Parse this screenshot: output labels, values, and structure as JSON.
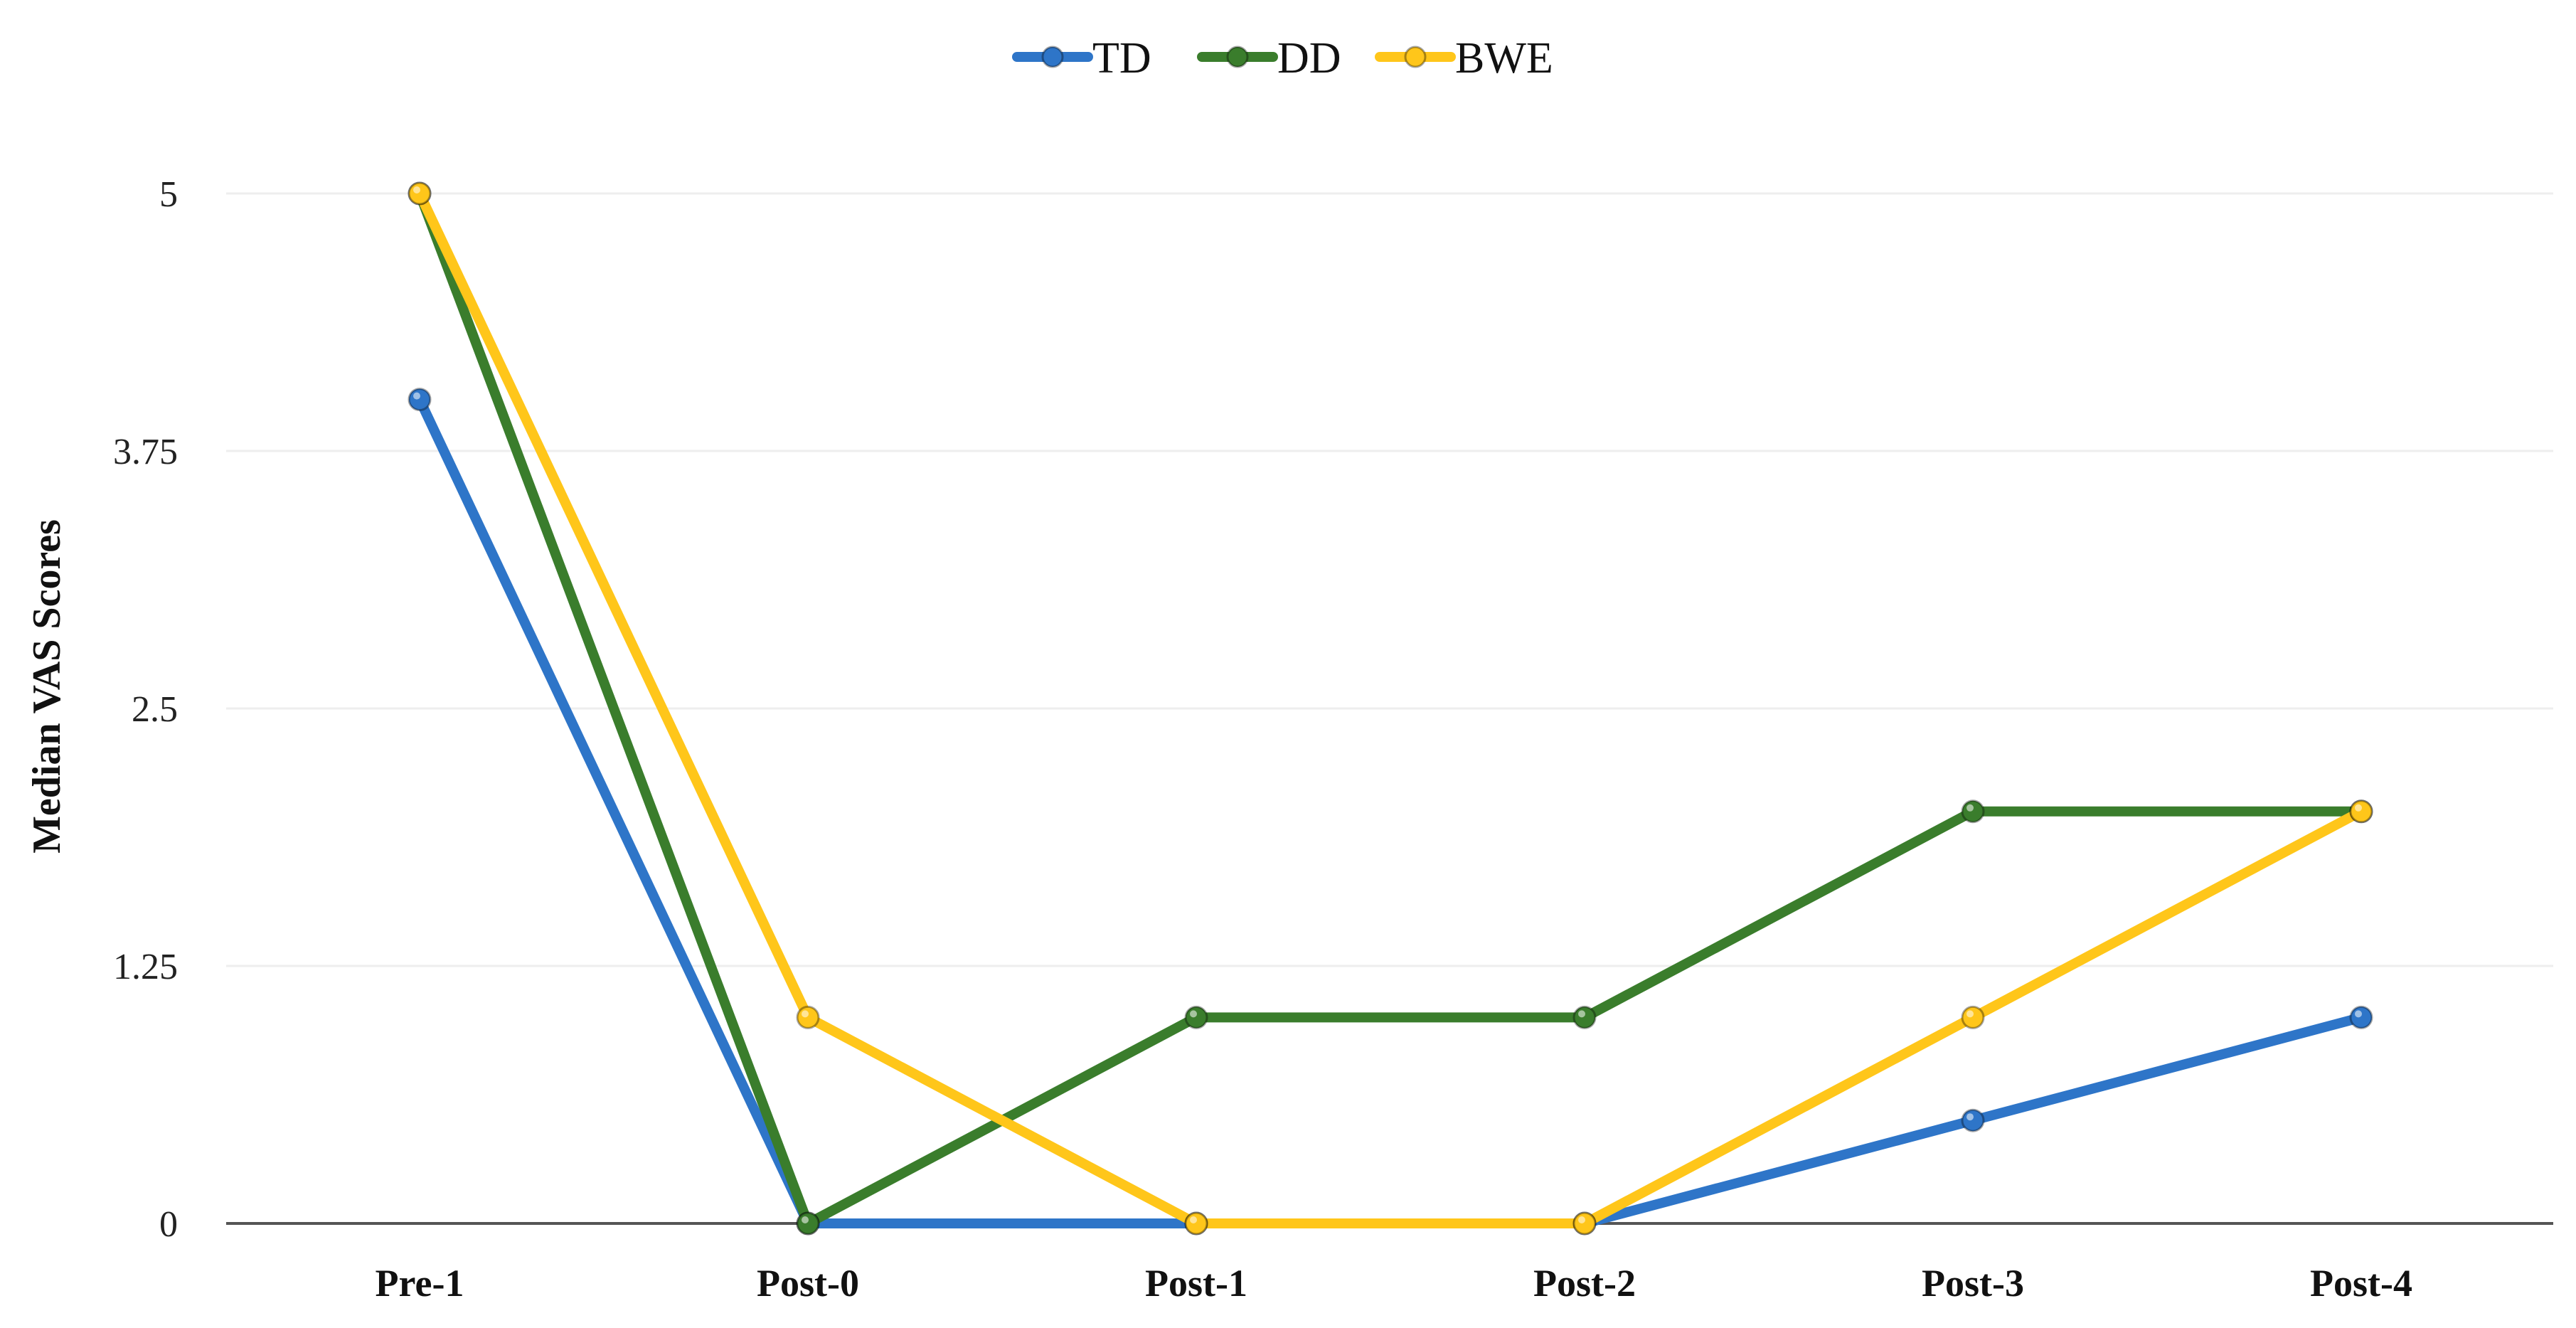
{
  "chart_data": {
    "type": "line",
    "title": "",
    "xlabel": "",
    "ylabel": "Median VAS Scores",
    "categories": [
      "Pre-1",
      "Post-0",
      "Post-1",
      "Post-2",
      "Post-3",
      "Post-4"
    ],
    "yticks": [
      0,
      1.25,
      2.5,
      3.75,
      5
    ],
    "ytick_labels": [
      "0",
      "1.25",
      "2.5",
      "3.75",
      "5"
    ],
    "ylim": [
      0,
      5
    ],
    "grid": true,
    "legend_position": "top-center",
    "series": [
      {
        "name": "TD",
        "color": "#2e75c8",
        "values": [
          4,
          0,
          0,
          0,
          0.5,
          1
        ]
      },
      {
        "name": "DD",
        "color": "#3a7d2c",
        "values": [
          5,
          0,
          1,
          1,
          2,
          2
        ]
      },
      {
        "name": "BWE",
        "color": "#ffc61a",
        "values": [
          5,
          1,
          0,
          0,
          1,
          2
        ]
      }
    ]
  }
}
